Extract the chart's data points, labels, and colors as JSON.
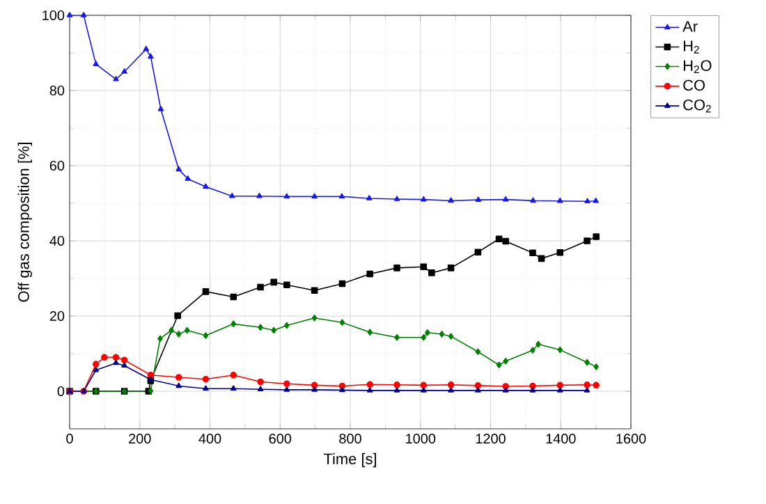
{
  "chart_data": {
    "type": "line",
    "xlabel": "Time [s]",
    "ylabel": "Off gas composition [%]",
    "xlim": [
      0,
      1600
    ],
    "ylim": [
      -10,
      100
    ],
    "xticks": [
      0,
      200,
      400,
      600,
      800,
      1000,
      1200,
      1400,
      1600
    ],
    "yticks": [
      0,
      20,
      40,
      60,
      80,
      100
    ],
    "grid": true,
    "legend": "right",
    "line_style": "solid",
    "series": [
      {
        "name": "Ar",
        "color": "#1a1ae6",
        "marker": "triangle",
        "x": [
          0,
          40,
          75,
          132,
          156,
          218,
          231,
          260,
          311,
          337,
          388,
          463,
          541,
          619,
          698,
          776,
          854,
          933,
          1009,
          1087,
          1165,
          1243,
          1321,
          1398,
          1476,
          1500
        ],
        "values": [
          100,
          100,
          87,
          83,
          85,
          91,
          89,
          75,
          59,
          56.5,
          54.4,
          51.9,
          51.9,
          51.8,
          51.8,
          51.8,
          51.3,
          51.1,
          51.0,
          50.7,
          50.9,
          51.0,
          50.7,
          50.6,
          50.5,
          50.6
        ]
      },
      {
        "name": "H$_{2}$",
        "color": "#000000",
        "marker": "square",
        "x": [
          0,
          75,
          156,
          225,
          231,
          308,
          388,
          467,
          544,
          582,
          619,
          698,
          777,
          856,
          933,
          1009,
          1032,
          1087,
          1164,
          1224,
          1243,
          1320,
          1345,
          1398,
          1475,
          1501
        ],
        "values": [
          0,
          0,
          0,
          0,
          2.8,
          20.1,
          26.5,
          25.1,
          27.7,
          29.0,
          28.3,
          26.8,
          28.6,
          31.2,
          32.8,
          33.1,
          31.5,
          32.8,
          37.0,
          40.5,
          39.9,
          36.8,
          35.3,
          36.9,
          40.0,
          41.1
        ]
      },
      {
        "name": "H$_{2}$O",
        "color": "#008000",
        "marker": "diamond",
        "x": [
          0,
          75,
          156,
          231,
          258,
          290,
          311,
          335,
          388,
          467,
          544,
          582,
          619,
          698,
          777,
          856,
          933,
          1009,
          1020,
          1061,
          1087,
          1164,
          1224,
          1243,
          1320,
          1336,
          1398,
          1475,
          1501
        ],
        "values": [
          0,
          0,
          0,
          0.1,
          14.0,
          16.2,
          15.2,
          16.2,
          14.8,
          17.9,
          17.0,
          16.2,
          17.5,
          19.5,
          18.3,
          15.7,
          14.3,
          14.3,
          15.6,
          15.2,
          14.6,
          10.5,
          7.0,
          8.0,
          10.9,
          12.5,
          11.0,
          7.7,
          6.5
        ]
      },
      {
        "name": "CO",
        "color": "#ff0000",
        "marker": "circle",
        "x": [
          0,
          40,
          75,
          99,
          132,
          156,
          231,
          311,
          388,
          467,
          544,
          619,
          698,
          777,
          856,
          933,
          1009,
          1087,
          1164,
          1243,
          1320,
          1398,
          1475,
          1501
        ],
        "values": [
          0,
          0,
          7.2,
          9.0,
          9.0,
          8.3,
          4.3,
          3.7,
          3.2,
          4.3,
          2.5,
          2.0,
          1.6,
          1.4,
          1.8,
          1.7,
          1.6,
          1.7,
          1.5,
          1.3,
          1.4,
          1.6,
          1.7,
          1.6
        ]
      },
      {
        "name": "CO$_{2}$",
        "color": "#00008b",
        "marker": "triangle down",
        "x": [
          0,
          40,
          75,
          132,
          156,
          231,
          311,
          388,
          467,
          544,
          619,
          698,
          777,
          856,
          933,
          1009,
          1087,
          1164,
          1243,
          1320,
          1398,
          1475
        ],
        "values": [
          0,
          0,
          5.6,
          7.5,
          6.8,
          3.1,
          1.4,
          0.7,
          0.7,
          0.5,
          0.4,
          0.4,
          0.3,
          0.2,
          0.2,
          0.2,
          0.2,
          0.2,
          0.2,
          0.2,
          0.2,
          0.2
        ]
      }
    ]
  }
}
